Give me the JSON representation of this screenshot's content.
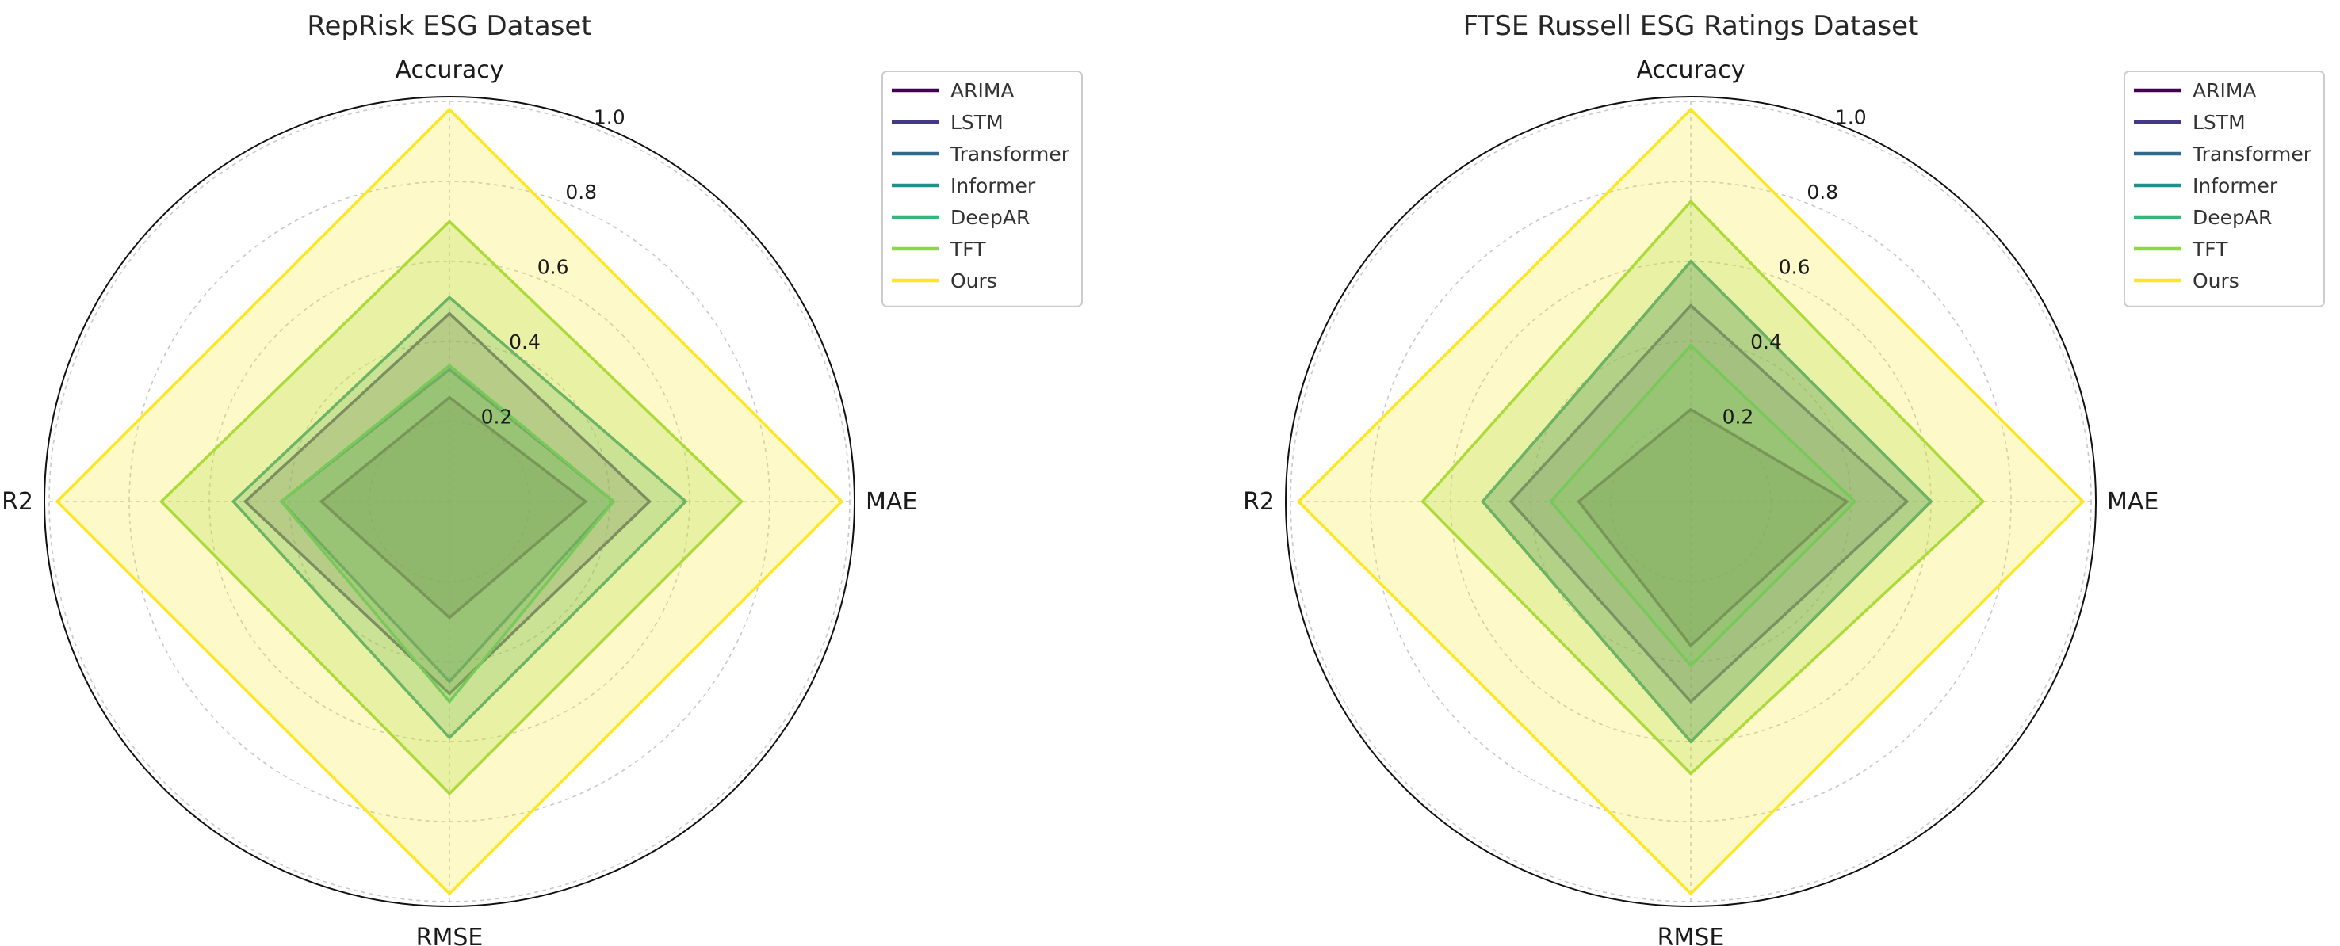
{
  "chart_data": [
    {
      "type": "radar",
      "title": "RepRisk ESG Dataset",
      "axes": [
        "Accuracy",
        "MAE",
        "RMSE",
        "R2"
      ],
      "rlim": [
        0,
        1.0
      ],
      "ticks": [
        "0.2",
        "0.4",
        "0.6",
        "0.8",
        "1.0"
      ],
      "tick_values": [
        0.2,
        0.4,
        0.6,
        0.8,
        1.0
      ],
      "grid": true,
      "legend_position": "upper-right-outside",
      "series": [
        {
          "name": "ARIMA",
          "values": [
            0.26,
            0.34,
            0.29,
            0.32
          ],
          "color": "#440154"
        },
        {
          "name": "LSTM",
          "values": [
            0.47,
            0.5,
            0.48,
            0.51
          ],
          "color": "#443983"
        },
        {
          "name": "Transformer",
          "values": [
            0.33,
            0.41,
            0.45,
            0.42
          ],
          "color": "#31688e"
        },
        {
          "name": "Informer",
          "values": [
            0.51,
            0.59,
            0.59,
            0.54
          ],
          "color": "#21918c"
        },
        {
          "name": "DeepAR",
          "values": [
            0.34,
            0.41,
            0.5,
            0.42
          ],
          "color": "#35b779"
        },
        {
          "name": "TFT",
          "values": [
            0.7,
            0.73,
            0.73,
            0.72
          ],
          "color": "#90d743"
        },
        {
          "name": "Ours",
          "values": [
            0.98,
            0.98,
            0.98,
            0.98
          ],
          "color": "#fde725"
        }
      ]
    },
    {
      "type": "radar",
      "title": "FTSE Russell ESG Ratings Dataset",
      "axes": [
        "Accuracy",
        "MAE",
        "RMSE",
        "R2"
      ],
      "rlim": [
        0,
        1.0
      ],
      "ticks": [
        "0.2",
        "0.4",
        "0.6",
        "0.8",
        "1.0"
      ],
      "tick_values": [
        0.2,
        0.4,
        0.6,
        0.8,
        1.0
      ],
      "grid": true,
      "legend_position": "upper-right-outside",
      "series": [
        {
          "name": "ARIMA",
          "values": [
            0.23,
            0.39,
            0.36,
            0.28
          ],
          "color": "#440154"
        },
        {
          "name": "LSTM",
          "values": [
            0.49,
            0.54,
            0.5,
            0.45
          ],
          "color": "#443983"
        },
        {
          "name": "Transformer",
          "values": [
            0.6,
            0.6,
            0.6,
            0.52
          ],
          "color": "#31688e"
        },
        {
          "name": "Informer",
          "values": [
            0.6,
            0.6,
            0.6,
            0.52
          ],
          "color": "#21918c"
        },
        {
          "name": "DeepAR",
          "values": [
            0.39,
            0.41,
            0.41,
            0.35
          ],
          "color": "#35b779"
        },
        {
          "name": "TFT",
          "values": [
            0.75,
            0.73,
            0.68,
            0.67
          ],
          "color": "#90d743"
        },
        {
          "name": "Ours",
          "values": [
            0.98,
            0.98,
            0.98,
            0.98
          ],
          "color": "#fde725"
        }
      ]
    }
  ]
}
